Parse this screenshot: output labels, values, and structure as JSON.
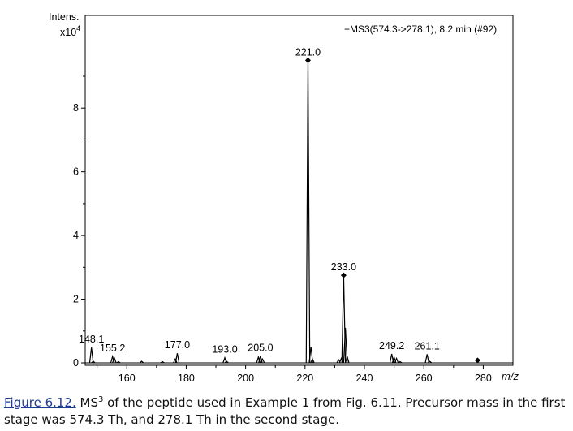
{
  "chart_data": {
    "type": "line",
    "y_unit_label": "Intens.",
    "y_scale_label": "x10",
    "y_scale_exponent": "4",
    "xlabel": "m/z",
    "scan_label": "+MS3(574.3->278.1), 8.2 min (#92)",
    "xlim": [
      146,
      290
    ],
    "ylim": [
      0,
      10.3
    ],
    "x_ticks": [
      160,
      180,
      200,
      220,
      240,
      260,
      280
    ],
    "y_ticks": [
      0,
      2,
      4,
      6,
      8
    ],
    "grid": false,
    "peaks": [
      {
        "x": 148.1,
        "y": 0.48,
        "label": "148.1"
      },
      {
        "x": 148.7,
        "y": 0.05
      },
      {
        "x": 155.2,
        "y": 0.2,
        "label": "155.2"
      },
      {
        "x": 155.8,
        "y": 0.16
      },
      {
        "x": 157.2,
        "y": 0.04
      },
      {
        "x": 165.0,
        "y": 0.05
      },
      {
        "x": 172.0,
        "y": 0.04
      },
      {
        "x": 176.3,
        "y": 0.12
      },
      {
        "x": 177.0,
        "y": 0.3,
        "label": "177.0"
      },
      {
        "x": 193.0,
        "y": 0.16,
        "label": "193.0"
      },
      {
        "x": 193.6,
        "y": 0.05
      },
      {
        "x": 204.3,
        "y": 0.18
      },
      {
        "x": 205.0,
        "y": 0.22,
        "label": "205.0"
      },
      {
        "x": 205.7,
        "y": 0.12
      },
      {
        "x": 221.0,
        "y": 9.5,
        "label": "221.0"
      },
      {
        "x": 222.0,
        "y": 0.5
      },
      {
        "x": 222.5,
        "y": 0.12
      },
      {
        "x": 231.3,
        "y": 0.1
      },
      {
        "x": 232.2,
        "y": 0.14
      },
      {
        "x": 233.0,
        "y": 2.75,
        "label": "233.0"
      },
      {
        "x": 233.6,
        "y": 1.1
      },
      {
        "x": 234.2,
        "y": 0.2
      },
      {
        "x": 249.2,
        "y": 0.28,
        "label": "249.2"
      },
      {
        "x": 250.0,
        "y": 0.18
      },
      {
        "x": 250.8,
        "y": 0.14
      },
      {
        "x": 252.0,
        "y": 0.04
      },
      {
        "x": 261.1,
        "y": 0.27,
        "label": "261.1"
      },
      {
        "x": 262.0,
        "y": 0.05
      }
    ],
    "markers": [
      {
        "x": 221.0,
        "y": 9.5
      },
      {
        "x": 233.0,
        "y": 2.75
      },
      {
        "x": 278.1,
        "y": 0.08
      }
    ]
  },
  "caption": {
    "figure_label": "Figure 6.12.",
    "ms_text": "MS",
    "ms_superscript": "3",
    "text": " of the peptide used in Example 1 from Fig. 6.11. Precursor mass in the first stage was 574.3 Th, and 278.1 Th in the second stage."
  }
}
